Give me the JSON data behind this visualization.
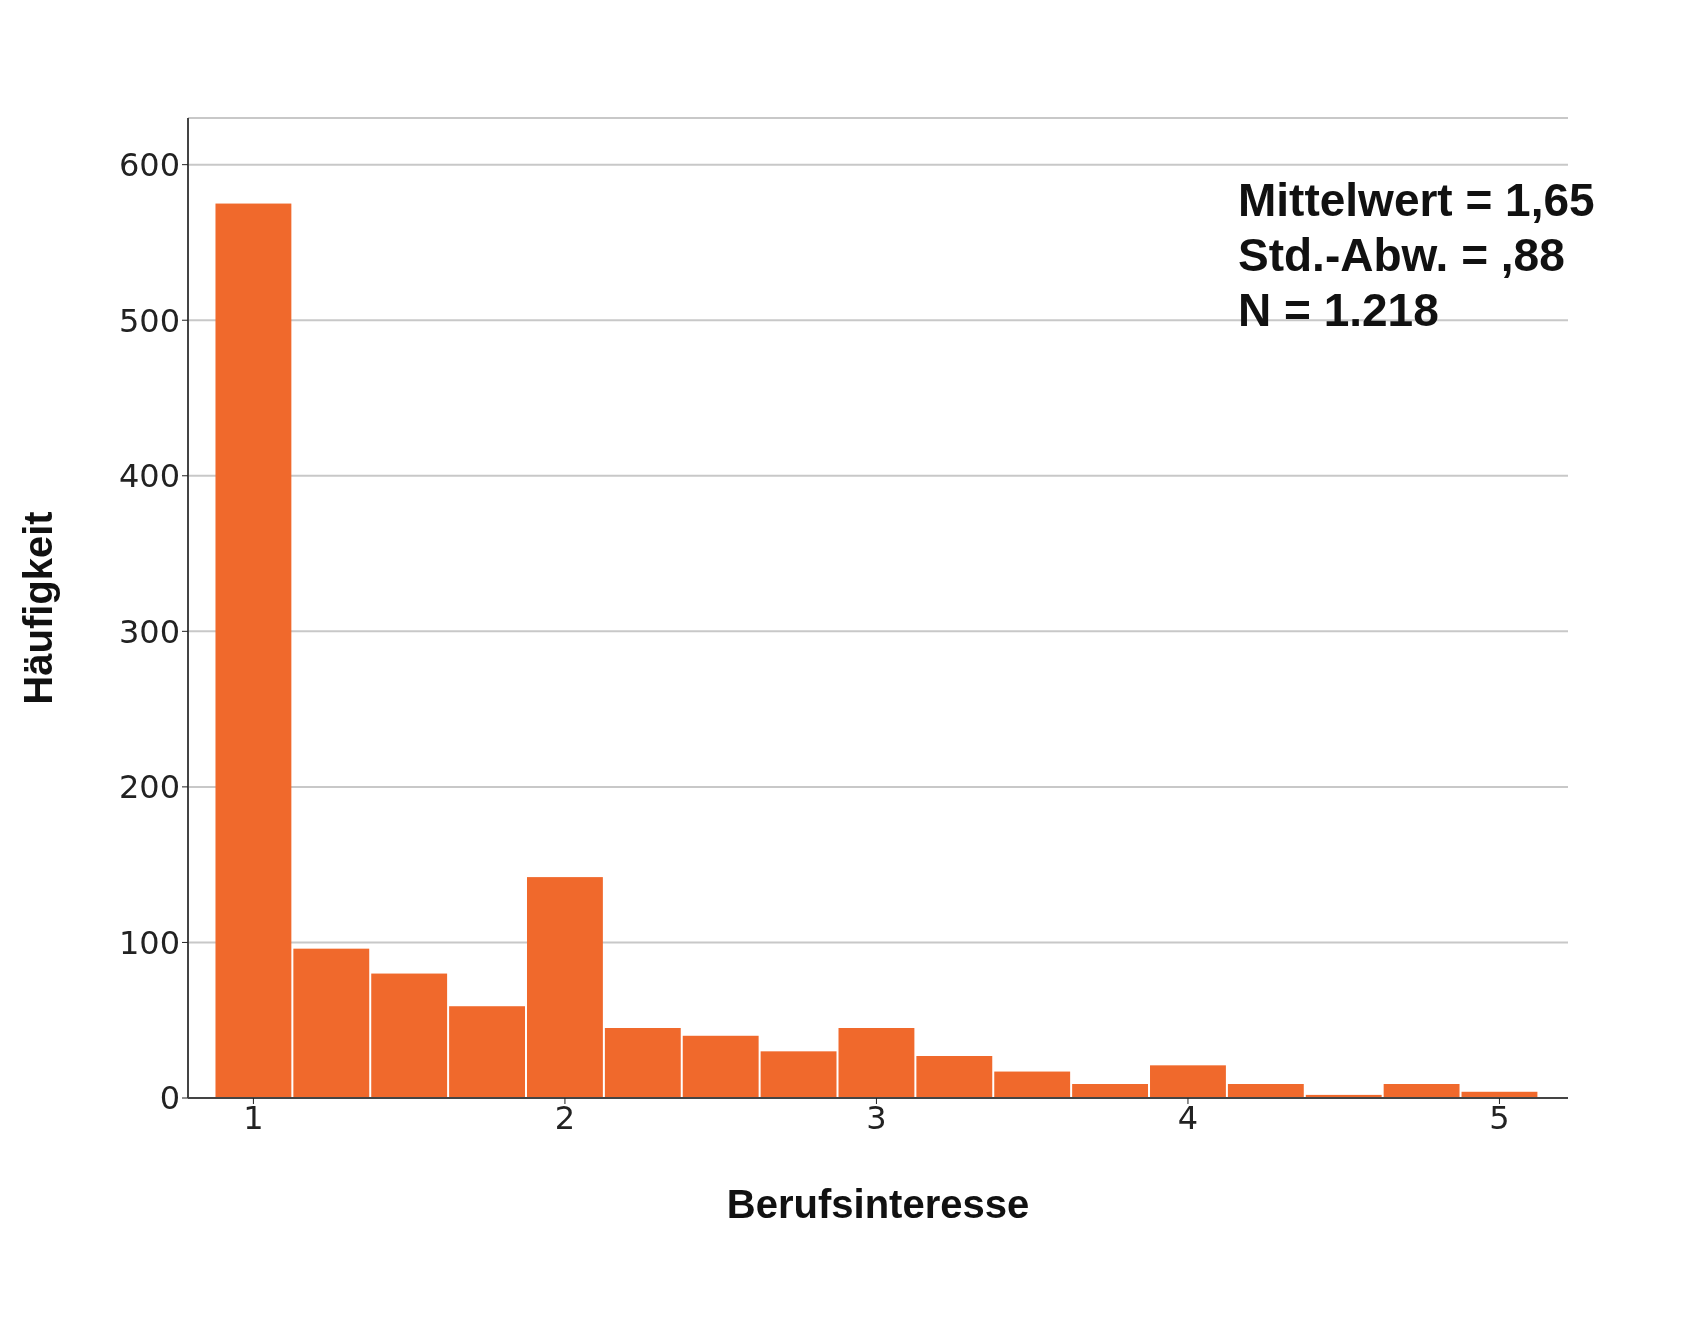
{
  "chart_data": {
    "type": "histogram",
    "xlabel": "Berufsinteresse",
    "ylabel": "Häufigkeit",
    "bins": [
      0.875,
      1.125,
      1.375,
      1.625,
      1.875,
      2.125,
      2.375,
      2.625,
      2.875,
      3.125,
      3.375,
      3.625,
      3.875,
      4.125,
      4.375,
      4.625,
      4.875,
      5.125
    ],
    "values": [
      575,
      96,
      80,
      59,
      142,
      45,
      40,
      30,
      45,
      27,
      17,
      9,
      21,
      9,
      2,
      9,
      4
    ],
    "color": "#f0692c",
    "xlim": [
      0.79,
      5.22
    ],
    "xticks": [
      1,
      2,
      3,
      4,
      5
    ],
    "ylim": [
      0,
      630
    ],
    "yticks": [
      0,
      100,
      200,
      300,
      400,
      500,
      600
    ],
    "grid": "y",
    "annotations": [
      "Mittelwert = 1,65",
      "Std.-Abw. = ,88",
      "N = 1.218"
    ]
  }
}
